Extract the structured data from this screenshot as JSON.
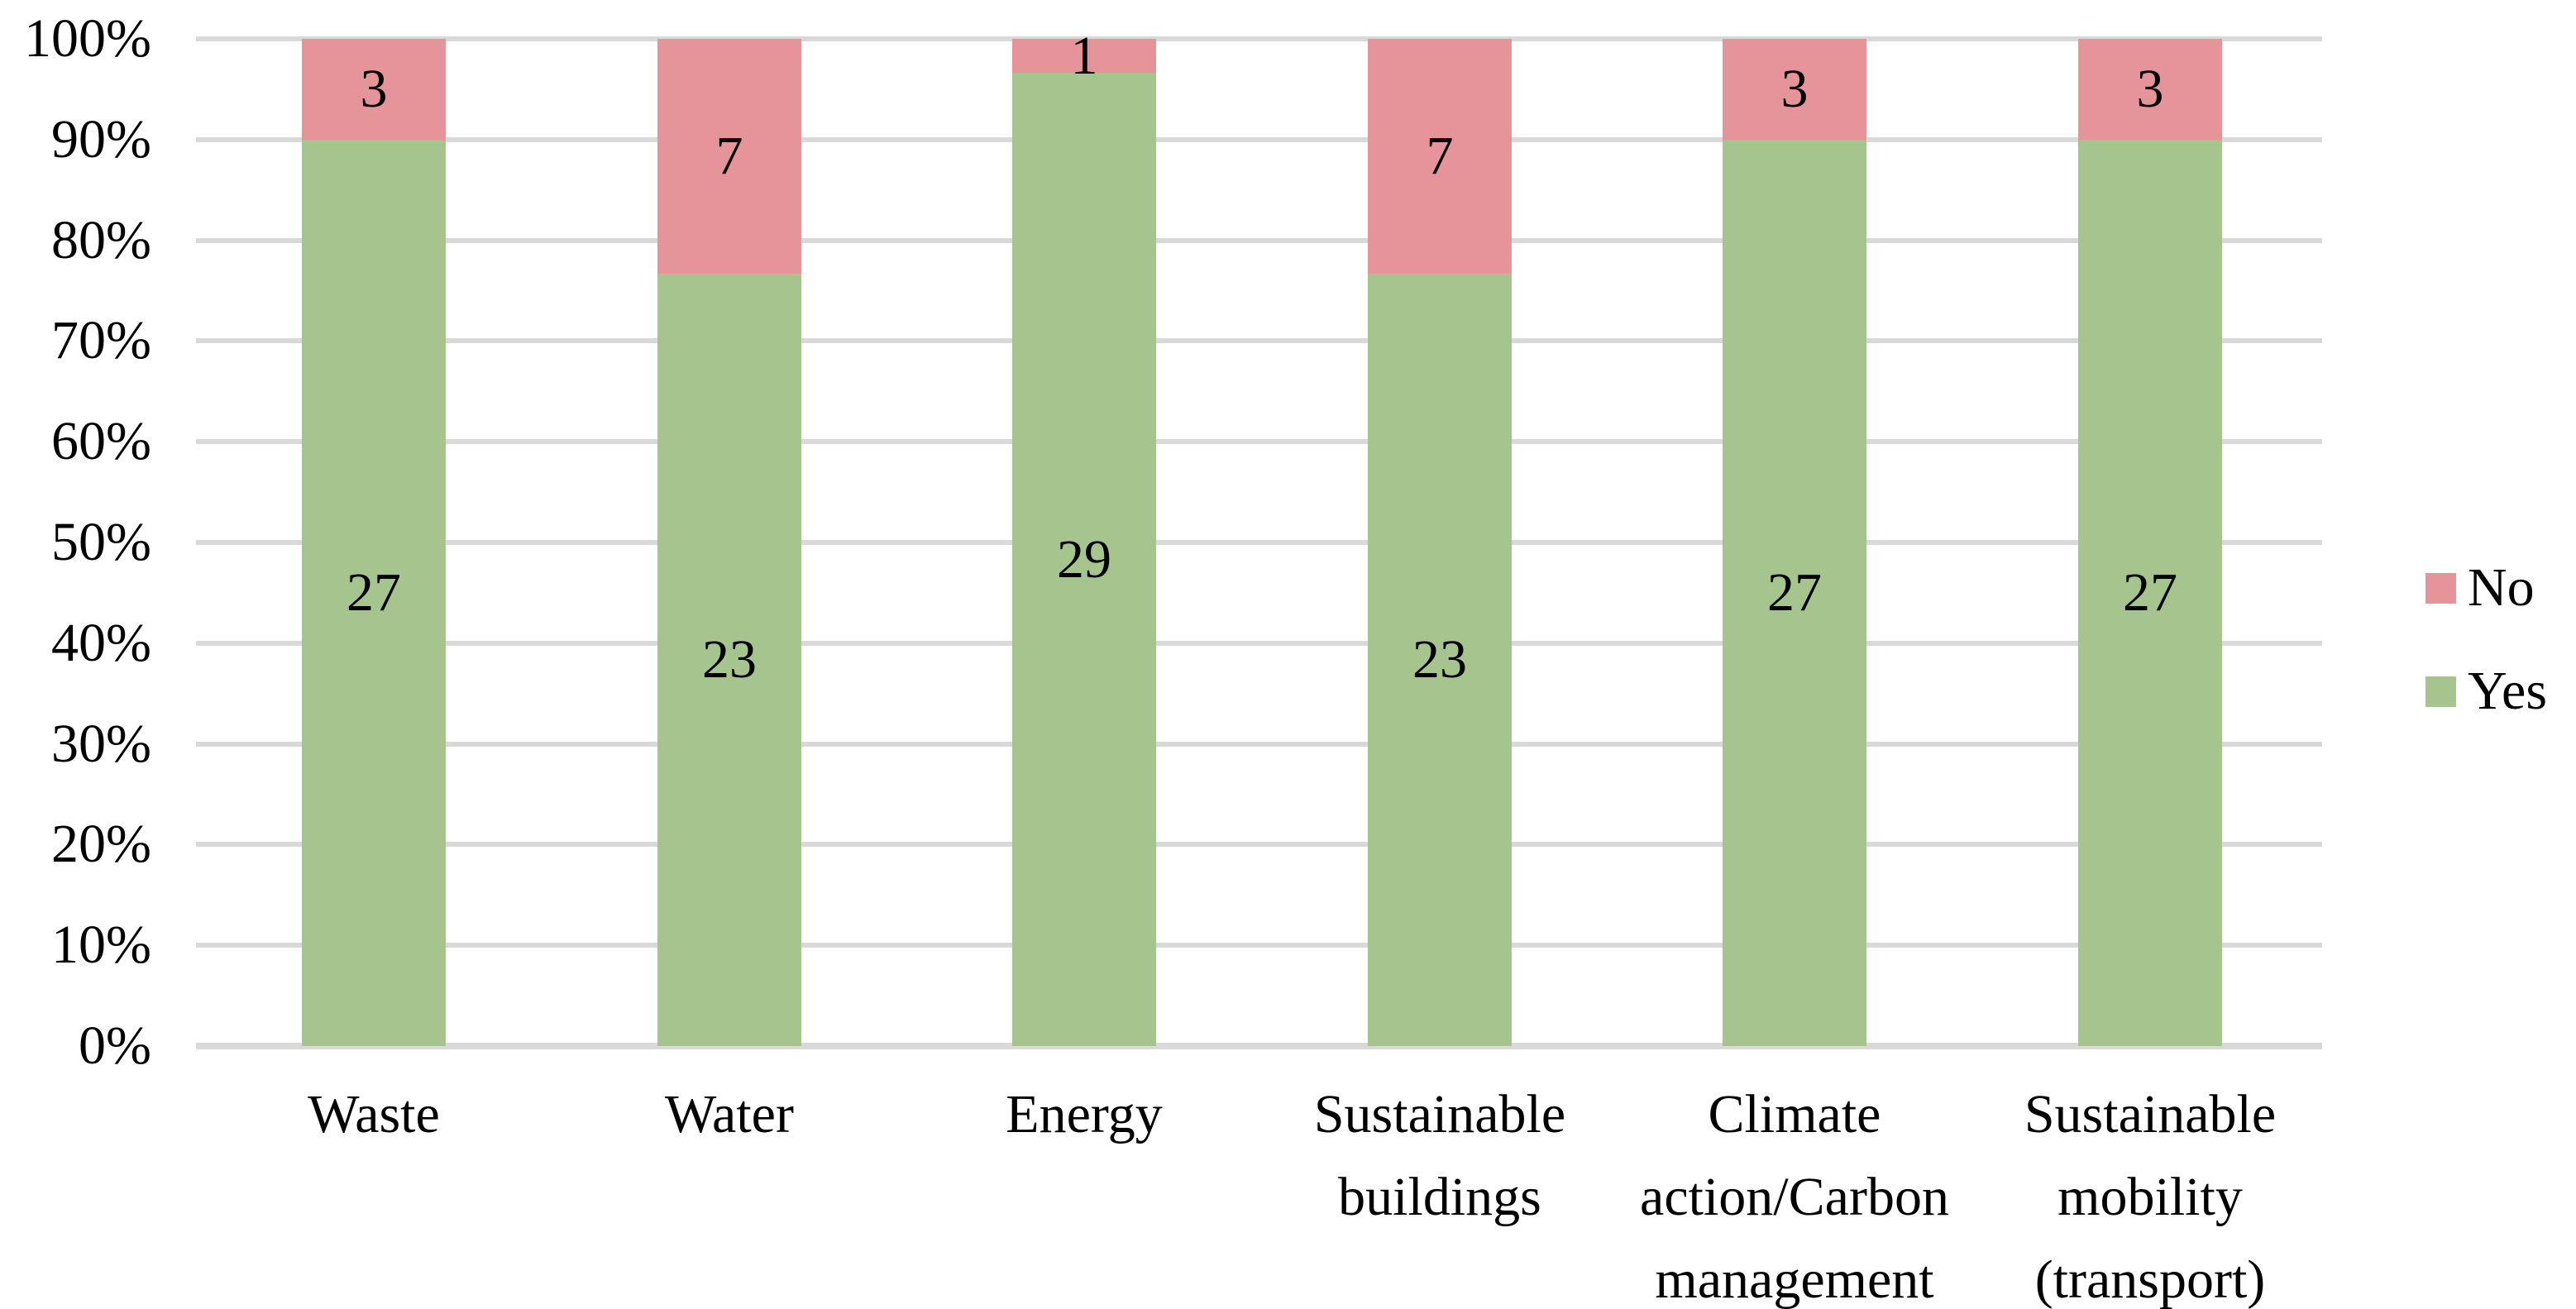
{
  "chart_data": {
    "type": "bar",
    "variant": "stacked-100-percent-column",
    "title": "",
    "xlabel": "",
    "ylabel": "",
    "categories": [
      "Waste",
      "Water",
      "Energy",
      "Sustainable buildings",
      "Climate action/Carbon management",
      "Sustainable mobility (transport)"
    ],
    "category_lines": [
      [
        "Waste"
      ],
      [
        "Water"
      ],
      [
        "Energy"
      ],
      [
        "Sustainable",
        "buildings"
      ],
      [
        "Climate",
        "action/Carbon",
        "management"
      ],
      [
        "Sustainable",
        "mobility",
        "(transport)"
      ]
    ],
    "series": [
      {
        "name": "Yes",
        "color": "#A6C48E",
        "values": [
          27,
          23,
          29,
          23,
          27,
          27
        ]
      },
      {
        "name": "No",
        "color": "#E5959A",
        "values": [
          3,
          7,
          1,
          7,
          3,
          3
        ]
      }
    ],
    "y_ticks": [
      "100%",
      "90%",
      "80%",
      "70%",
      "60%",
      "50%",
      "40%",
      "30%",
      "20%",
      "10%",
      "0%"
    ],
    "ylim_percent": [
      0,
      100
    ],
    "grid": true,
    "gridline_color": "#D9D9D9",
    "legend_position": "right",
    "legend_items": [
      {
        "label": "No",
        "color": "#E5959A"
      },
      {
        "label": "Yes",
        "color": "#A6C48E"
      }
    ],
    "data_label_color": "#000000",
    "background_color": "#FFFFFF"
  }
}
